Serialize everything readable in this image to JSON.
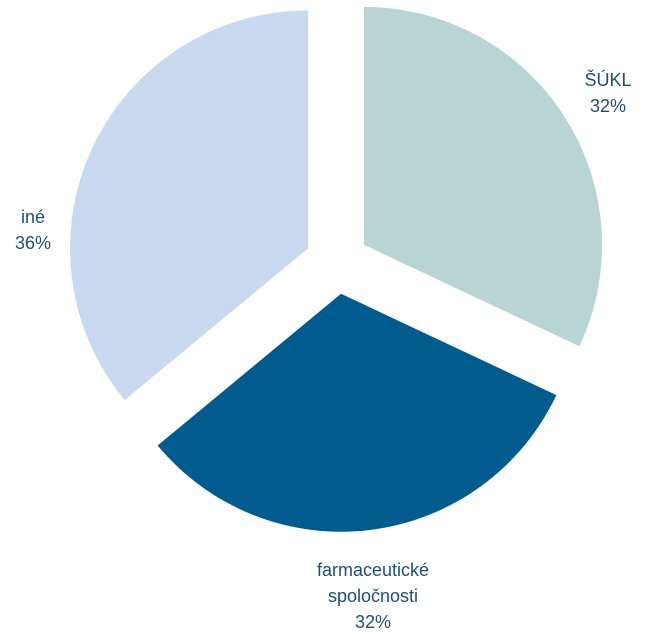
{
  "chart_data": {
    "type": "pie",
    "title": "",
    "exploded": true,
    "start_angle_deg": 0,
    "direction": "clockwise",
    "slices": [
      {
        "label": "ŠÚKL",
        "value": 32,
        "value_label": "32%",
        "color": "#B8D5D3"
      },
      {
        "label": "farmaceutické spoločnosti",
        "value": 32,
        "value_label": "32%",
        "color": "#005B8F"
      },
      {
        "label": "iné",
        "value": 36,
        "value_label": "36%",
        "color": "#C8D9F0"
      }
    ],
    "legend": "none"
  }
}
